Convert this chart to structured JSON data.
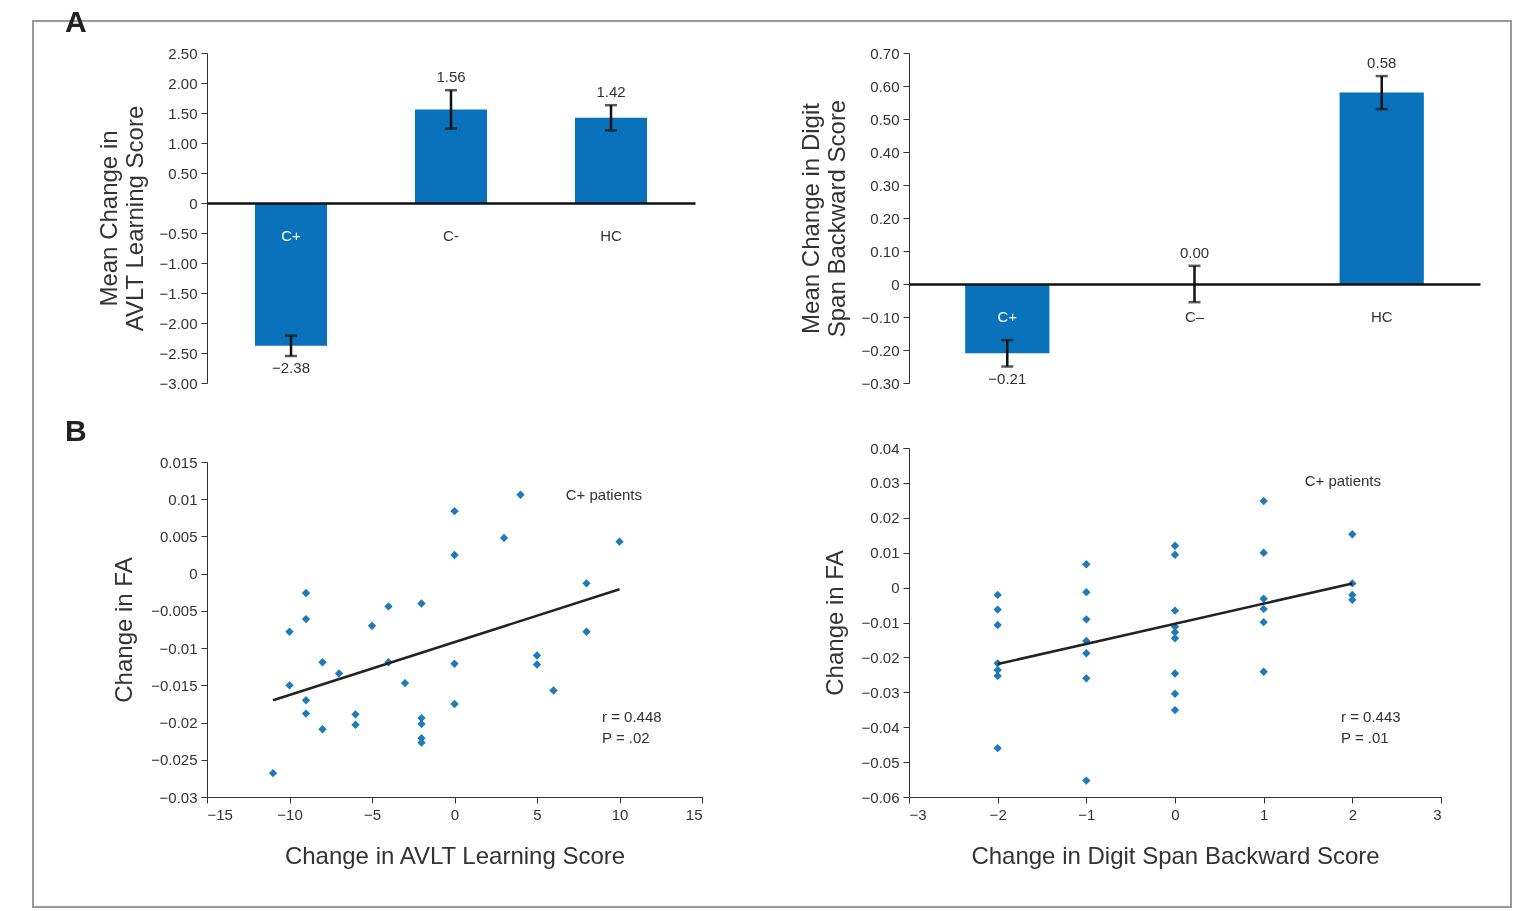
{
  "chart_data": [
    {
      "type": "bar",
      "title": "A",
      "ylabel": "Mean Change in AVLT Learning Score",
      "categories": [
        "C+",
        "C-",
        "HC"
      ],
      "values": [
        -2.38,
        1.56,
        1.42
      ],
      "value_labels": [
        "−2.38",
        "1.56",
        "1.42"
      ],
      "errors": [
        0.17,
        0.32,
        0.21
      ],
      "color": "#0a72ba",
      "ylim": [
        -3.0,
        2.5
      ],
      "yticks": [
        {
          "value": 2.5,
          "label": "2.50"
        },
        {
          "value": 2,
          "label": "2.00"
        },
        {
          "value": 1.5,
          "label": "1.50"
        },
        {
          "value": 1,
          "label": "1.00"
        },
        {
          "value": 0.5,
          "label": "0.50"
        },
        0,
        {
          "value": -0.5,
          "label": "−0.50"
        },
        {
          "value": -1,
          "label": "−1.00"
        },
        {
          "value": -1.5,
          "label": "−1.50"
        },
        {
          "value": -2,
          "label": "−2.00"
        },
        {
          "value": -2.5,
          "label": "−2.50"
        },
        {
          "value": -3,
          "label": "−3.00"
        }
      ]
    },
    {
      "type": "bar",
      "ylabel": "Mean Change in Digit Span Backward Score",
      "categories": [
        "C+",
        "C–",
        "HC"
      ],
      "values": [
        -0.21,
        0.0,
        0.58
      ],
      "value_labels": [
        "−0.21",
        "0.00",
        "0.58"
      ],
      "errors": [
        0.04,
        0.055,
        0.05
      ],
      "color": "#0a72ba",
      "ylim": [
        -0.3,
        0.7
      ],
      "yticks": [
        {
          "value": 0.7,
          "label": "0.70"
        },
        {
          "value": 0.6,
          "label": "0.60"
        },
        {
          "value": 0.5,
          "label": "0.50"
        },
        {
          "value": 0.4,
          "label": "0.40"
        },
        {
          "value": 0.3,
          "label": "0.30"
        },
        {
          "value": 0.2,
          "label": "0.20"
        },
        {
          "value": 0.1,
          "label": "0.10"
        },
        0,
        {
          "value": -0.1,
          "label": "−0.10"
        },
        {
          "value": -0.2,
          "label": "−0.20"
        },
        {
          "value": -0.3,
          "label": "−0.30"
        }
      ]
    },
    {
      "type": "scatter",
      "title": "B",
      "xlabel": "Change in AVLT Learning Score",
      "ylabel": "Change in FA",
      "marker": "diamond",
      "annotations": [
        "C+ patients",
        "r = 0.448",
        "P = .02"
      ],
      "xlim": [
        -15,
        15
      ],
      "xticks": [
        {
          "value": -15,
          "label": "−15"
        },
        {
          "value": -10,
          "label": "−10"
        },
        {
          "value": -5,
          "label": "−5"
        },
        0,
        5,
        10,
        15
      ],
      "ylim": [
        -0.03,
        0.015
      ],
      "yticks": [
        0.015,
        0.01,
        0.005,
        0,
        {
          "value": -0.005,
          "label": "−0.005"
        },
        {
          "value": -0.01,
          "label": "−0.01"
        },
        {
          "value": -0.015,
          "label": "−0.015"
        },
        {
          "value": -0.02,
          "label": "−0.02"
        },
        {
          "value": -0.025,
          "label": "−0.025"
        },
        {
          "value": -0.03,
          "label": "−0.03"
        }
      ],
      "series": [
        {
          "type": "scatter",
          "color": "#1f7ab8",
          "x": [
            -11,
            -10,
            -10,
            -9,
            -9,
            -9,
            -9,
            -8,
            -8,
            -7,
            -6,
            -6,
            -5,
            -4,
            -4,
            -3,
            -2,
            -2,
            -2,
            -2,
            -2,
            0,
            0,
            0,
            0,
            3,
            4,
            5,
            5,
            6,
            8,
            8,
            10
          ],
          "values": [
            -0.0268,
            -0.0078,
            -0.015,
            -0.0026,
            -0.0061,
            -0.017,
            -0.0188,
            -0.0119,
            -0.0209,
            -0.0134,
            -0.0189,
            -0.0203,
            -0.007,
            -0.0044,
            -0.0119,
            -0.0147,
            -0.004,
            -0.0194,
            -0.0202,
            -0.0221,
            -0.0227,
            0.0084,
            0.0025,
            -0.0121,
            -0.0175,
            0.0048,
            0.0106,
            -0.011,
            -0.0122,
            -0.0157,
            -0.0013,
            -0.0078,
            0.0043
          ]
        },
        {
          "type": "line",
          "color": "#222222",
          "marker": "none",
          "x": [
            -11,
            10
          ],
          "values": [
            -0.017,
            -0.0021
          ]
        }
      ]
    },
    {
      "type": "scatter",
      "xlabel": "Change in Digit Span Backward Score",
      "ylabel": "Change in FA",
      "marker": "diamond",
      "annotations": [
        "C+ patients",
        "r = 0.443",
        "P = .01"
      ],
      "xlim": [
        -3,
        3
      ],
      "xticks": [
        {
          "value": -3,
          "label": "−3"
        },
        {
          "value": -2,
          "label": "−2"
        },
        {
          "value": -1,
          "label": "−1"
        },
        0,
        1,
        2,
        3
      ],
      "ylim": [
        -0.06,
        0.04
      ],
      "yticks": [
        0.04,
        0.03,
        0.02,
        0.01,
        0,
        {
          "value": -0.01,
          "label": "−0.01"
        },
        {
          "value": -0.02,
          "label": "−0.02"
        },
        {
          "value": -0.03,
          "label": "−0.03"
        },
        {
          "value": -0.04,
          "label": "−0.04"
        },
        {
          "value": -0.05,
          "label": "−0.05"
        },
        {
          "value": -0.06,
          "label": "−0.06"
        }
      ],
      "series": [
        {
          "type": "scatter",
          "color": "#1f7ab8",
          "x": [
            -2,
            -2,
            -2,
            -2,
            -2,
            -2,
            -2,
            -1,
            -1,
            -1,
            -1,
            -1,
            -1,
            -1,
            0,
            0,
            0,
            0,
            0,
            0,
            0,
            0,
            0,
            1,
            1,
            1,
            1,
            1,
            1,
            2,
            2,
            2,
            2
          ],
          "values": [
            -0.0021,
            -0.0063,
            -0.0107,
            -0.0217,
            -0.0236,
            -0.0253,
            -0.046,
            0.0067,
            -0.0013,
            -0.0091,
            -0.0153,
            -0.0188,
            -0.026,
            -0.0553,
            0.012,
            0.0094,
            -0.0066,
            -0.0112,
            -0.0128,
            -0.0145,
            -0.0246,
            -0.0304,
            -0.0351,
            0.0248,
            0.01,
            -0.0032,
            -0.0061,
            -0.0099,
            -0.0241,
            0.0153,
            0.0012,
            -0.0021,
            -0.0035
          ]
        },
        {
          "type": "line",
          "color": "#222222",
          "marker": "none",
          "x": [
            -2,
            2
          ],
          "values": [
            -0.0219,
            0.0012
          ]
        }
      ]
    }
  ]
}
